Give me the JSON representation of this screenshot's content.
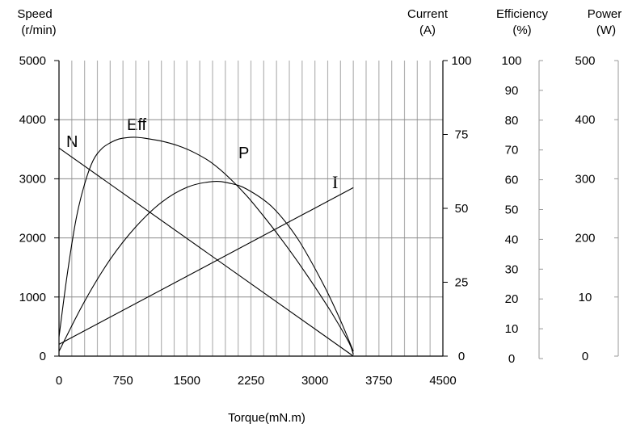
{
  "chart_data": {
    "type": "line",
    "xlabel": "Torque(mN.m)",
    "x_ticks": [
      "0",
      "750",
      "1500",
      "2250",
      "3000",
      "3750",
      "4500"
    ],
    "xlim": [
      0,
      4500
    ],
    "axes": {
      "speed": {
        "title_line1": "Speed",
        "title_line2": "(r/min)",
        "ticks": [
          "5000",
          "4000",
          "3000",
          "2000",
          "1000",
          "0"
        ],
        "range": [
          0,
          5000
        ]
      },
      "current": {
        "title_line1": "Current",
        "title_line2": "(A)",
        "ticks": [
          "100",
          "75",
          "50",
          "25",
          "0"
        ],
        "range": [
          0,
          100
        ]
      },
      "efficiency": {
        "title_line1": "Efficiency",
        "title_line2": "(%)",
        "ticks": [
          "100",
          "90",
          "80",
          "70",
          "60",
          "50",
          "40",
          "30",
          "20",
          "10",
          "0"
        ],
        "range": [
          0,
          100
        ]
      },
      "power": {
        "title_line1": "Power",
        "title_line2": "(W)",
        "ticks": [
          "500",
          "400",
          "300",
          "200",
          "10",
          "0"
        ],
        "range": [
          0,
          500
        ]
      }
    },
    "series": [
      {
        "name": "N",
        "axis": "speed",
        "x": [
          0,
          3450
        ],
        "y": [
          3520,
          0
        ]
      },
      {
        "name": "I",
        "axis": "current",
        "x": [
          0,
          3450
        ],
        "y": [
          4,
          57
        ]
      },
      {
        "name": "Eff",
        "axis": "efficiency",
        "x": [
          0,
          100,
          200,
          300,
          400,
          500,
          600,
          700,
          800,
          900,
          1000,
          1200,
          1400,
          1600,
          1800,
          2000,
          2200,
          2400,
          2600,
          2800,
          3000,
          3200,
          3400,
          3450
        ],
        "y": [
          6,
          28,
          46,
          58,
          66,
          70,
          72,
          73.3,
          73.8,
          73.9,
          73.6,
          72.6,
          71,
          68.5,
          65,
          60,
          54,
          47,
          39.5,
          31.5,
          23,
          14,
          4,
          0
        ]
      },
      {
        "name": "P",
        "axis": "power",
        "x": [
          0,
          300,
          600,
          900,
          1200,
          1500,
          1800,
          2000,
          2200,
          2500,
          2800,
          3100,
          3300,
          3450
        ],
        "y": [
          0,
          86,
          158,
          214,
          256,
          282,
          292,
          289,
          279,
          248,
          193,
          115,
          53,
          0
        ]
      }
    ]
  }
}
